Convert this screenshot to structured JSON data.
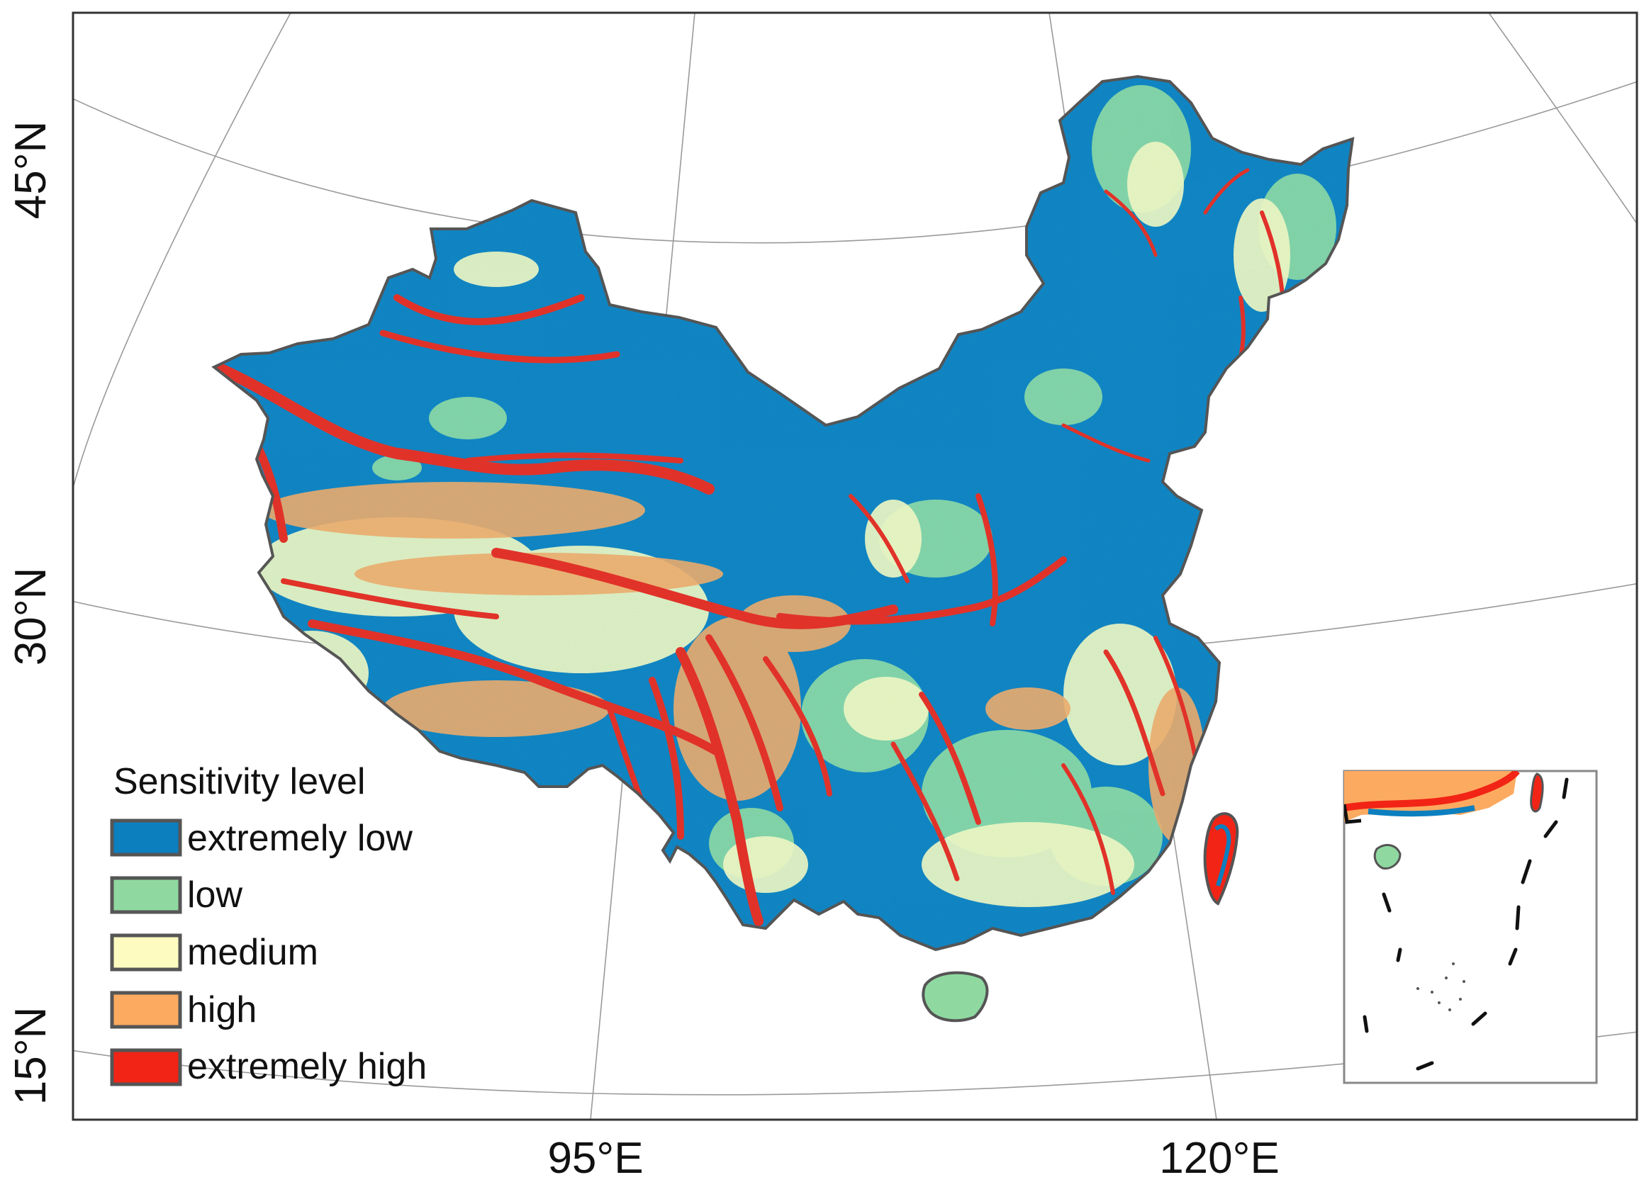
{
  "map": {
    "latitude_labels": [
      "45°N",
      "30°N",
      "15°N"
    ],
    "longitude_labels": [
      "95°E",
      "120°E"
    ],
    "legend": {
      "title": "Sensitivity level",
      "items": [
        {
          "label": "extremely low",
          "color": "#0c7fbf"
        },
        {
          "label": "low",
          "color": "#8fd9a0"
        },
        {
          "label": "medium",
          "color": "#fdfbbf"
        },
        {
          "label": "high",
          "color": "#fcaa60"
        },
        {
          "label": "extremely high",
          "color": "#f22416"
        }
      ]
    },
    "colors": {
      "frame": "#333333",
      "graticule": "#9a9a9a",
      "border": "#555555",
      "inset_frame": "#888888",
      "nine_dash_line": "#111111"
    }
  }
}
